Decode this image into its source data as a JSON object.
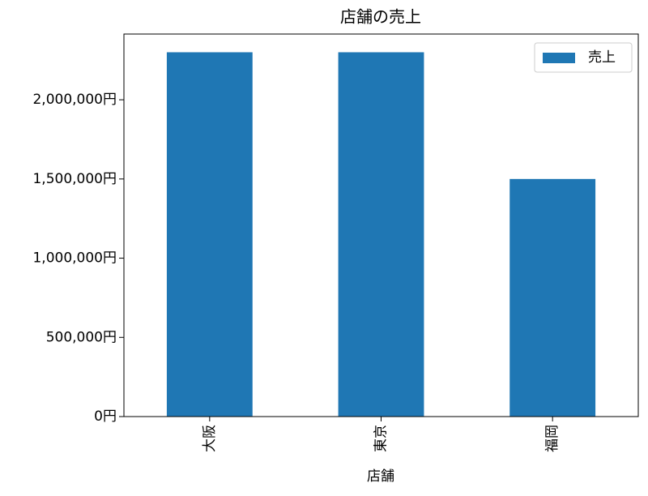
{
  "chart_data": {
    "type": "bar",
    "title": "店舗の売上",
    "x_label": "店舗",
    "categories": [
      "大阪",
      "東京",
      "福岡"
    ],
    "series": [
      {
        "name": "売上",
        "color": "#1f77b4",
        "values": [
          2300000,
          2300000,
          1500000
        ]
      }
    ],
    "ylim": [
      0,
      2415000
    ],
    "yticks": [
      {
        "value": 0,
        "label": "0円"
      },
      {
        "value": 500000,
        "label": "500,000円"
      },
      {
        "value": 1000000,
        "label": "1,000,000円"
      },
      {
        "value": 1500000,
        "label": "1,500,000円"
      },
      {
        "value": 2000000,
        "label": "2,000,000円"
      }
    ],
    "legend": "upper right",
    "grid": false
  }
}
